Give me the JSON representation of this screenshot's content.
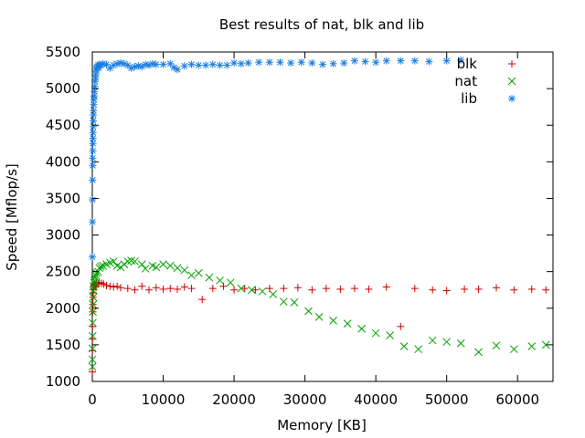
{
  "chart_data": {
    "type": "scatter",
    "title": "Best results of nat, blk and lib",
    "xlabel": "Memory [KB]",
    "ylabel": "Speed [Mflop/s]",
    "xlim": [
      0,
      65000
    ],
    "ylim": [
      1000,
      5500
    ],
    "x_ticks": [
      0,
      10000,
      20000,
      30000,
      40000,
      50000,
      60000
    ],
    "y_ticks": [
      1000,
      1500,
      2000,
      2500,
      3000,
      3500,
      4000,
      4500,
      5000,
      5500
    ],
    "x_tick_labels": [
      "0",
      "10000",
      "20000",
      "30000",
      "40000",
      "50000",
      "60000"
    ],
    "y_tick_labels": [
      "1000",
      "1500",
      "2000",
      "2500",
      "3000",
      "3500",
      "4000",
      "4500",
      "5000",
      "5500"
    ],
    "grid": false,
    "legend_position": "top-right",
    "series": [
      {
        "name": "blk",
        "color": "#cc0000",
        "marker": "plus",
        "points": [
          [
            10,
            1130
          ],
          [
            20,
            1420
          ],
          [
            30,
            1580
          ],
          [
            40,
            1750
          ],
          [
            60,
            1950
          ],
          [
            80,
            2050
          ],
          [
            100,
            2150
          ],
          [
            130,
            2210
          ],
          [
            160,
            2250
          ],
          [
            200,
            2300
          ],
          [
            250,
            2320
          ],
          [
            300,
            2300
          ],
          [
            400,
            2330
          ],
          [
            500,
            2290
          ],
          [
            600,
            2350
          ],
          [
            800,
            2340
          ],
          [
            1000,
            2350
          ],
          [
            1300,
            2340
          ],
          [
            1600,
            2330
          ],
          [
            2000,
            2310
          ],
          [
            2500,
            2300
          ],
          [
            3000,
            2290
          ],
          [
            3500,
            2300
          ],
          [
            4000,
            2280
          ],
          [
            5000,
            2270
          ],
          [
            6000,
            2250
          ],
          [
            7000,
            2300
          ],
          [
            8000,
            2250
          ],
          [
            9000,
            2280
          ],
          [
            10000,
            2260
          ],
          [
            11000,
            2270
          ],
          [
            12000,
            2260
          ],
          [
            13000,
            2290
          ],
          [
            14000,
            2270
          ],
          [
            15500,
            2120
          ],
          [
            17000,
            2270
          ],
          [
            18500,
            2300
          ],
          [
            20000,
            2250
          ],
          [
            21500,
            2270
          ],
          [
            23000,
            2250
          ],
          [
            25000,
            2270
          ],
          [
            27000,
            2270
          ],
          [
            29000,
            2280
          ],
          [
            31000,
            2250
          ],
          [
            33000,
            2270
          ],
          [
            35000,
            2260
          ],
          [
            37000,
            2270
          ],
          [
            39000,
            2260
          ],
          [
            41500,
            2290
          ],
          [
            43500,
            1750
          ],
          [
            45500,
            2270
          ],
          [
            48000,
            2250
          ],
          [
            50000,
            2240
          ],
          [
            52500,
            2260
          ],
          [
            54500,
            2260
          ],
          [
            57000,
            2280
          ],
          [
            59500,
            2250
          ],
          [
            62000,
            2260
          ],
          [
            64000,
            2250
          ]
        ]
      },
      {
        "name": "nat",
        "color": "#00a000",
        "marker": "cross",
        "points": [
          [
            10,
            1200
          ],
          [
            20,
            1300
          ],
          [
            30,
            1450
          ],
          [
            40,
            1620
          ],
          [
            60,
            1800
          ],
          [
            80,
            1950
          ],
          [
            100,
            2050
          ],
          [
            130,
            2150
          ],
          [
            160,
            2240
          ],
          [
            200,
            2300
          ],
          [
            250,
            2350
          ],
          [
            300,
            2380
          ],
          [
            400,
            2420
          ],
          [
            500,
            2450
          ],
          [
            600,
            2480
          ],
          [
            800,
            2500
          ],
          [
            1000,
            2550
          ],
          [
            1200,
            2570
          ],
          [
            1500,
            2580
          ],
          [
            2000,
            2600
          ],
          [
            2500,
            2620
          ],
          [
            3000,
            2640
          ],
          [
            3500,
            2580
          ],
          [
            4000,
            2560
          ],
          [
            4500,
            2600
          ],
          [
            5000,
            2640
          ],
          [
            5500,
            2650
          ],
          [
            6000,
            2640
          ],
          [
            7000,
            2600
          ],
          [
            7500,
            2540
          ],
          [
            8500,
            2580
          ],
          [
            9000,
            2560
          ],
          [
            10000,
            2600
          ],
          [
            11000,
            2580
          ],
          [
            12000,
            2550
          ],
          [
            13000,
            2520
          ],
          [
            14000,
            2450
          ],
          [
            15000,
            2480
          ],
          [
            16500,
            2420
          ],
          [
            18000,
            2380
          ],
          [
            19500,
            2350
          ],
          [
            21000,
            2270
          ],
          [
            22500,
            2250
          ],
          [
            24000,
            2230
          ],
          [
            25500,
            2190
          ],
          [
            27000,
            2090
          ],
          [
            28500,
            2080
          ],
          [
            30500,
            1960
          ],
          [
            32000,
            1880
          ],
          [
            34000,
            1830
          ],
          [
            36000,
            1790
          ],
          [
            38000,
            1720
          ],
          [
            40000,
            1660
          ],
          [
            42000,
            1630
          ],
          [
            44000,
            1480
          ],
          [
            46000,
            1440
          ],
          [
            48000,
            1560
          ],
          [
            50000,
            1540
          ],
          [
            52000,
            1520
          ],
          [
            54500,
            1400
          ],
          [
            57000,
            1490
          ],
          [
            59500,
            1440
          ],
          [
            62000,
            1480
          ],
          [
            64000,
            1500
          ]
        ]
      },
      {
        "name": "lib",
        "color": "#1a7fe0",
        "marker": "star",
        "points": [
          [
            10,
            2700
          ],
          [
            20,
            3180
          ],
          [
            30,
            3480
          ],
          [
            40,
            3750
          ],
          [
            50,
            3950
          ],
          [
            60,
            4050
          ],
          [
            70,
            4150
          ],
          [
            80,
            4250
          ],
          [
            90,
            4320
          ],
          [
            100,
            4400
          ],
          [
            110,
            4480
          ],
          [
            130,
            4560
          ],
          [
            150,
            4640
          ],
          [
            170,
            4700
          ],
          [
            200,
            4780
          ],
          [
            230,
            4850
          ],
          [
            260,
            4900
          ],
          [
            300,
            4960
          ],
          [
            350,
            5030
          ],
          [
            400,
            5100
          ],
          [
            450,
            5150
          ],
          [
            500,
            5200
          ],
          [
            550,
            5250
          ],
          [
            600,
            5280
          ],
          [
            700,
            5300
          ],
          [
            800,
            5320
          ],
          [
            900,
            5280
          ],
          [
            1000,
            5330
          ],
          [
            1200,
            5320
          ],
          [
            1500,
            5340
          ],
          [
            2000,
            5330
          ],
          [
            2500,
            5280
          ],
          [
            3000,
            5320
          ],
          [
            3500,
            5340
          ],
          [
            4000,
            5350
          ],
          [
            4500,
            5340
          ],
          [
            5000,
            5320
          ],
          [
            5500,
            5280
          ],
          [
            6000,
            5300
          ],
          [
            6500,
            5310
          ],
          [
            7000,
            5300
          ],
          [
            7500,
            5330
          ],
          [
            8000,
            5320
          ],
          [
            8500,
            5340
          ],
          [
            9000,
            5330
          ],
          [
            10000,
            5330
          ],
          [
            11000,
            5340
          ],
          [
            11500,
            5290
          ],
          [
            12000,
            5260
          ],
          [
            13000,
            5310
          ],
          [
            14000,
            5330
          ],
          [
            15000,
            5320
          ],
          [
            16000,
            5320
          ],
          [
            17000,
            5330
          ],
          [
            18000,
            5320
          ],
          [
            19000,
            5320
          ],
          [
            20000,
            5350
          ],
          [
            21000,
            5340
          ],
          [
            22000,
            5350
          ],
          [
            23500,
            5360
          ],
          [
            25000,
            5360
          ],
          [
            26500,
            5360
          ],
          [
            28000,
            5350
          ],
          [
            29500,
            5360
          ],
          [
            31000,
            5350
          ],
          [
            32500,
            5330
          ],
          [
            34000,
            5340
          ],
          [
            35500,
            5350
          ],
          [
            37000,
            5380
          ],
          [
            38500,
            5370
          ],
          [
            40000,
            5360
          ],
          [
            41500,
            5380
          ],
          [
            43500,
            5380
          ],
          [
            45500,
            5380
          ],
          [
            47500,
            5370
          ],
          [
            50000,
            5380
          ],
          [
            52000,
            5390
          ]
        ]
      }
    ]
  }
}
